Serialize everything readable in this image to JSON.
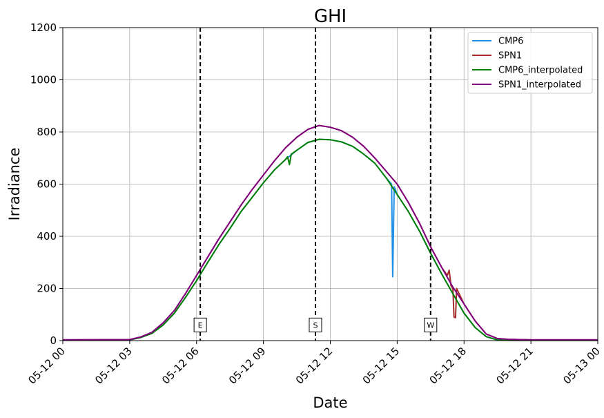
{
  "chart_data": {
    "type": "line",
    "title": "GHI",
    "xlabel": "Date",
    "ylabel": "Irradiance",
    "xlim": [
      "05-12 00:00",
      "05-13 00:00"
    ],
    "ylim": [
      0,
      1200
    ],
    "x_tick_labels": [
      "05-12 00",
      "05-12 03",
      "05-12 06",
      "05-12 09",
      "05-12 12",
      "05-12 15",
      "05-12 18",
      "05-12 21",
      "05-13 00"
    ],
    "y_ticks": [
      0,
      200,
      400,
      600,
      800,
      1000,
      1200
    ],
    "grid": true,
    "legend_position": "top-right",
    "series": [
      {
        "name": "CMP6",
        "color": "#1f8ee6",
        "points": [
          [
            "05-12 00:00",
            2
          ],
          [
            "05-12 03:00",
            3
          ],
          [
            "05-12 03:30",
            12
          ],
          [
            "05-12 04:00",
            28
          ],
          [
            "05-12 04:30",
            60
          ],
          [
            "05-12 05:00",
            105
          ],
          [
            "05-12 05:30",
            165
          ],
          [
            "05-12 06:00",
            230
          ],
          [
            "05-12 06:30",
            300
          ],
          [
            "05-12 07:00",
            368
          ],
          [
            "05-12 07:30",
            430
          ],
          [
            "05-12 08:00",
            495
          ],
          [
            "05-12 08:30",
            550
          ],
          [
            "05-12 09:00",
            605
          ],
          [
            "05-12 09:30",
            655
          ],
          [
            "05-12 10:00",
            695
          ],
          [
            "05-12 10:30",
            730
          ],
          [
            "05-12 11:00",
            760
          ],
          [
            "05-12 11:30",
            772
          ],
          [
            "05-12 12:00",
            770
          ],
          [
            "05-12 12:30",
            762
          ],
          [
            "05-12 13:00",
            745
          ],
          [
            "05-12 13:30",
            715
          ],
          [
            "05-12 14:00",
            680
          ],
          [
            "05-12 14:30",
            625
          ],
          [
            "05-12 14:45",
            600
          ],
          [
            "05-12 14:48",
            245
          ],
          [
            "05-12 14:52",
            590
          ],
          [
            "05-12 15:00",
            560
          ],
          [
            "05-12 15:30",
            495
          ],
          [
            "05-12 16:00",
            420
          ],
          [
            "05-12 16:30",
            335
          ],
          [
            "05-12 17:00",
            255
          ],
          [
            "05-12 17:30",
            180
          ],
          [
            "05-12 18:00",
            105
          ],
          [
            "05-12 18:30",
            50
          ],
          [
            "05-12 19:00",
            15
          ],
          [
            "05-12 19:30",
            3
          ],
          [
            "05-12 21:00",
            2
          ],
          [
            "05-13 00:00",
            2
          ]
        ]
      },
      {
        "name": "SPN1",
        "color": "#a52a2a",
        "points": [
          [
            "05-12 00:00",
            3
          ],
          [
            "05-12 03:00",
            4
          ],
          [
            "05-12 03:30",
            14
          ],
          [
            "05-12 04:00",
            32
          ],
          [
            "05-12 04:30",
            68
          ],
          [
            "05-12 05:00",
            115
          ],
          [
            "05-12 05:30",
            180
          ],
          [
            "05-12 06:00",
            250
          ],
          [
            "05-12 06:30",
            320
          ],
          [
            "05-12 07:00",
            390
          ],
          [
            "05-12 07:30",
            455
          ],
          [
            "05-12 08:00",
            520
          ],
          [
            "05-12 08:30",
            580
          ],
          [
            "05-12 09:00",
            635
          ],
          [
            "05-12 09:30",
            690
          ],
          [
            "05-12 10:00",
            740
          ],
          [
            "05-12 10:30",
            780
          ],
          [
            "05-12 11:00",
            810
          ],
          [
            "05-12 11:30",
            825
          ],
          [
            "05-12 12:00",
            818
          ],
          [
            "05-12 12:30",
            805
          ],
          [
            "05-12 13:00",
            780
          ],
          [
            "05-12 13:30",
            745
          ],
          [
            "05-12 14:00",
            700
          ],
          [
            "05-12 14:30",
            650
          ],
          [
            "05-12 15:00",
            600
          ],
          [
            "05-12 15:30",
            530
          ],
          [
            "05-12 16:00",
            450
          ],
          [
            "05-12 16:30",
            360
          ],
          [
            "05-12 17:00",
            280
          ],
          [
            "05-12 17:15",
            250
          ],
          [
            "05-12 17:20",
            270
          ],
          [
            "05-12 17:25",
            210
          ],
          [
            "05-12 17:30",
            200
          ],
          [
            "05-12 17:33",
            90
          ],
          [
            "05-12 17:37",
            88
          ],
          [
            "05-12 17:40",
            200
          ],
          [
            "05-12 18:00",
            140
          ],
          [
            "05-12 18:30",
            75
          ],
          [
            "05-12 19:00",
            25
          ],
          [
            "05-12 19:30",
            8
          ],
          [
            "05-12 20:00",
            5
          ],
          [
            "05-12 21:00",
            3
          ],
          [
            "05-13 00:00",
            3
          ]
        ]
      },
      {
        "name": "CMP6_interpolated",
        "color": "#008000",
        "points": [
          [
            "05-12 00:00",
            2
          ],
          [
            "05-12 03:00",
            3
          ],
          [
            "05-12 03:30",
            12
          ],
          [
            "05-12 04:00",
            28
          ],
          [
            "05-12 04:30",
            60
          ],
          [
            "05-12 05:00",
            105
          ],
          [
            "05-12 05:30",
            165
          ],
          [
            "05-12 06:00",
            230
          ],
          [
            "05-12 06:30",
            300
          ],
          [
            "05-12 07:00",
            368
          ],
          [
            "05-12 07:30",
            430
          ],
          [
            "05-12 08:00",
            495
          ],
          [
            "05-12 08:30",
            550
          ],
          [
            "05-12 09:00",
            605
          ],
          [
            "05-12 09:30",
            655
          ],
          [
            "05-12 10:00",
            695
          ],
          [
            "05-12 10:05",
            705
          ],
          [
            "05-12 10:10",
            675
          ],
          [
            "05-12 10:15",
            715
          ],
          [
            "05-12 10:30",
            730
          ],
          [
            "05-12 11:00",
            760
          ],
          [
            "05-12 11:30",
            772
          ],
          [
            "05-12 12:00",
            770
          ],
          [
            "05-12 12:30",
            762
          ],
          [
            "05-12 13:00",
            745
          ],
          [
            "05-12 13:30",
            715
          ],
          [
            "05-12 14:00",
            680
          ],
          [
            "05-12 14:30",
            625
          ],
          [
            "05-12 15:00",
            560
          ],
          [
            "05-12 15:30",
            495
          ],
          [
            "05-12 16:00",
            420
          ],
          [
            "05-12 16:30",
            335
          ],
          [
            "05-12 17:00",
            255
          ],
          [
            "05-12 17:30",
            180
          ],
          [
            "05-12 18:00",
            105
          ],
          [
            "05-12 18:30",
            50
          ],
          [
            "05-12 19:00",
            15
          ],
          [
            "05-12 19:30",
            2
          ],
          [
            "05-12 20:00",
            1
          ],
          [
            "05-13 00:00",
            1
          ]
        ]
      },
      {
        "name": "SPN1_interpolated",
        "color": "#800080",
        "points": [
          [
            "05-12 00:00",
            3
          ],
          [
            "05-12 03:00",
            4
          ],
          [
            "05-12 03:30",
            14
          ],
          [
            "05-12 04:00",
            32
          ],
          [
            "05-12 04:30",
            68
          ],
          [
            "05-12 05:00",
            115
          ],
          [
            "05-12 05:30",
            180
          ],
          [
            "05-12 06:00",
            250
          ],
          [
            "05-12 06:30",
            320
          ],
          [
            "05-12 07:00",
            390
          ],
          [
            "05-12 07:30",
            455
          ],
          [
            "05-12 08:00",
            520
          ],
          [
            "05-12 08:30",
            580
          ],
          [
            "05-12 09:00",
            635
          ],
          [
            "05-12 09:30",
            690
          ],
          [
            "05-12 10:00",
            740
          ],
          [
            "05-12 10:30",
            780
          ],
          [
            "05-12 11:00",
            810
          ],
          [
            "05-12 11:30",
            825
          ],
          [
            "05-12 12:00",
            818
          ],
          [
            "05-12 12:30",
            805
          ],
          [
            "05-12 13:00",
            780
          ],
          [
            "05-12 13:30",
            745
          ],
          [
            "05-12 14:00",
            700
          ],
          [
            "05-12 14:30",
            650
          ],
          [
            "05-12 15:00",
            600
          ],
          [
            "05-12 15:30",
            530
          ],
          [
            "05-12 16:00",
            450
          ],
          [
            "05-12 16:30",
            360
          ],
          [
            "05-12 17:00",
            280
          ],
          [
            "05-12 17:30",
            205
          ],
          [
            "05-12 18:00",
            140
          ],
          [
            "05-12 18:30",
            75
          ],
          [
            "05-12 19:00",
            25
          ],
          [
            "05-12 19:30",
            8
          ],
          [
            "05-12 20:00",
            5
          ],
          [
            "05-12 21:00",
            3
          ],
          [
            "05-13 00:00",
            3
          ]
        ]
      }
    ],
    "vertical_markers": [
      {
        "label": "E",
        "x": "05-12 06:10"
      },
      {
        "label": "S",
        "x": "05-12 11:20"
      },
      {
        "label": "W",
        "x": "05-12 16:30"
      }
    ]
  }
}
